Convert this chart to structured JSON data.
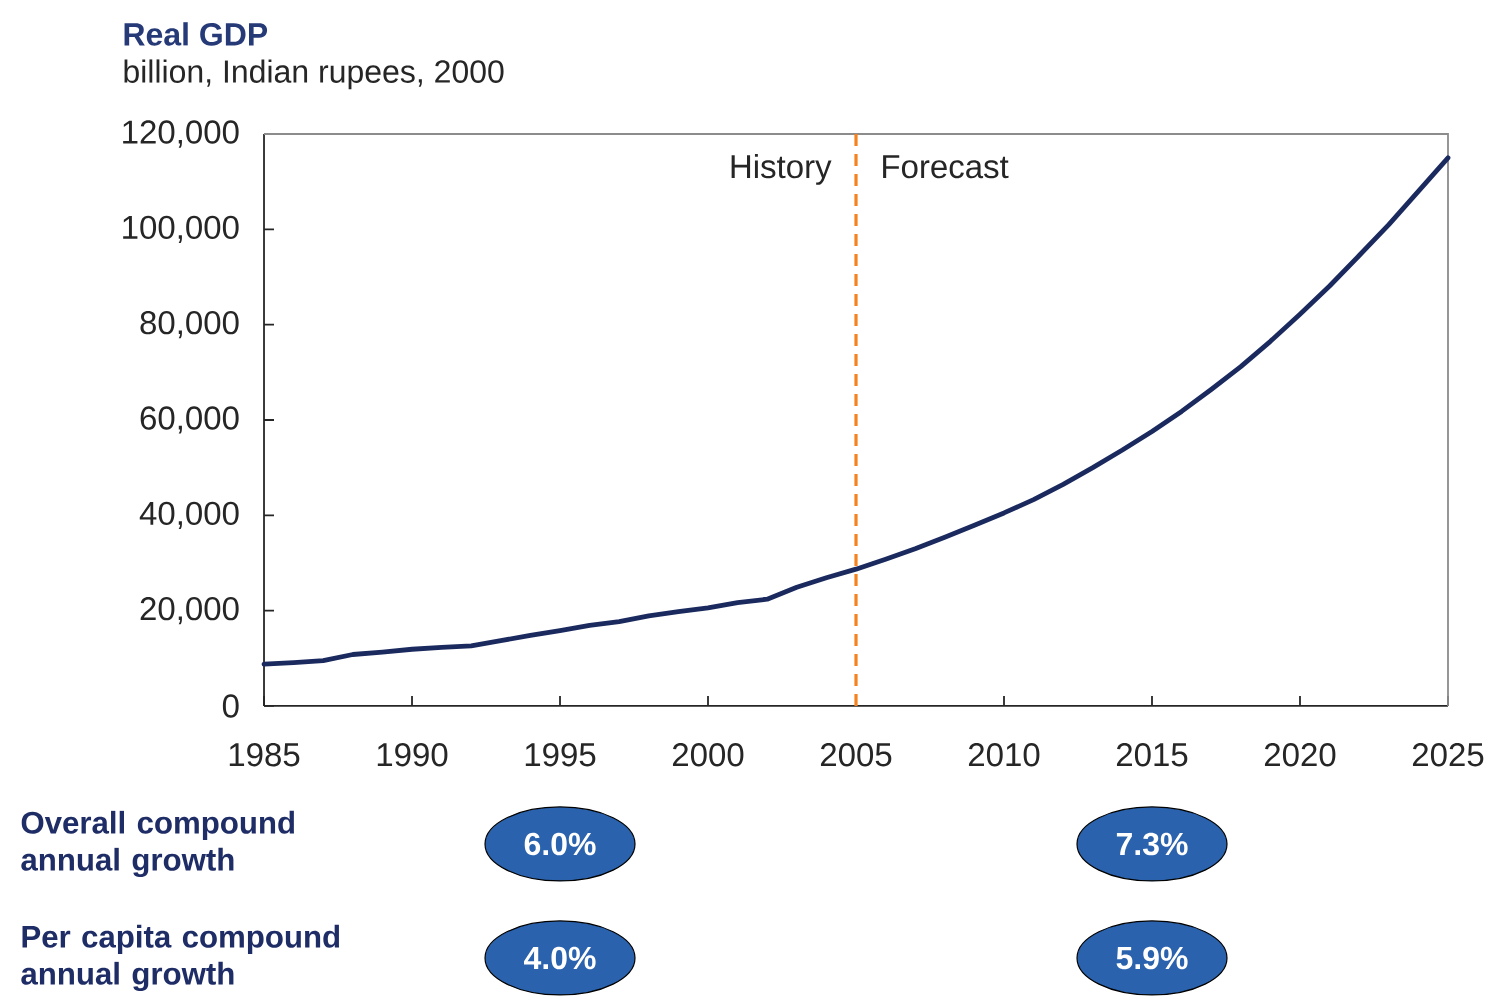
{
  "chart_data": [
    {
      "type": "line",
      "title": "Real GDP",
      "subtitle": "billion, Indian rupees, 2000",
      "x": [
        1985,
        1986,
        1987,
        1988,
        1989,
        1990,
        1991,
        1992,
        1993,
        1994,
        1995,
        1996,
        1997,
        1998,
        1999,
        2000,
        2001,
        2002,
        2003,
        2004,
        2005,
        2006,
        2007,
        2008,
        2009,
        2010,
        2011,
        2012,
        2013,
        2014,
        2015,
        2016,
        2017,
        2018,
        2019,
        2020,
        2021,
        2022,
        2023,
        2024,
        2025
      ],
      "values": [
        8800,
        9100,
        9500,
        10800,
        11300,
        11900,
        12300,
        12600,
        13700,
        14800,
        15800,
        16900,
        17700,
        18900,
        19800,
        20600,
        21700,
        22400,
        24900,
        26900,
        28700,
        30800,
        33000,
        35400,
        37900,
        40500,
        43300,
        46500,
        50000,
        53700,
        57600,
        61800,
        66400,
        71200,
        76500,
        82200,
        88100,
        94500,
        101000,
        108000,
        115000
      ],
      "color": "#1b2a5e",
      "xlim": [
        1985,
        2025
      ],
      "ylim": [
        0,
        120000
      ],
      "xticks": [
        1985,
        1990,
        1995,
        2000,
        2005,
        2010,
        2015,
        2020,
        2025
      ],
      "yticks": [
        0,
        {
          "value": 20000,
          "label": "20,000"
        },
        {
          "value": 40000,
          "label": "40,000"
        },
        {
          "value": 60000,
          "label": "60,000"
        },
        {
          "value": 80000,
          "label": "80,000"
        },
        {
          "value": 100000,
          "label": "100,000"
        },
        {
          "value": 120000,
          "label": "120,000"
        }
      ],
      "ref_lines": [
        {
          "axis": "x",
          "value": 2005,
          "color": "#f5821f",
          "line_style": "dashed"
        }
      ],
      "annotations": [
        "History",
        "Forecast"
      ]
    },
    {
      "type": "other",
      "categories": [
        null,
        null
      ],
      "annotations": [
        "Overall compound annual growth",
        "6.0%",
        "7.3%",
        "Per capita compound annual growth",
        "4.0%",
        "5.9%"
      ]
    }
  ]
}
